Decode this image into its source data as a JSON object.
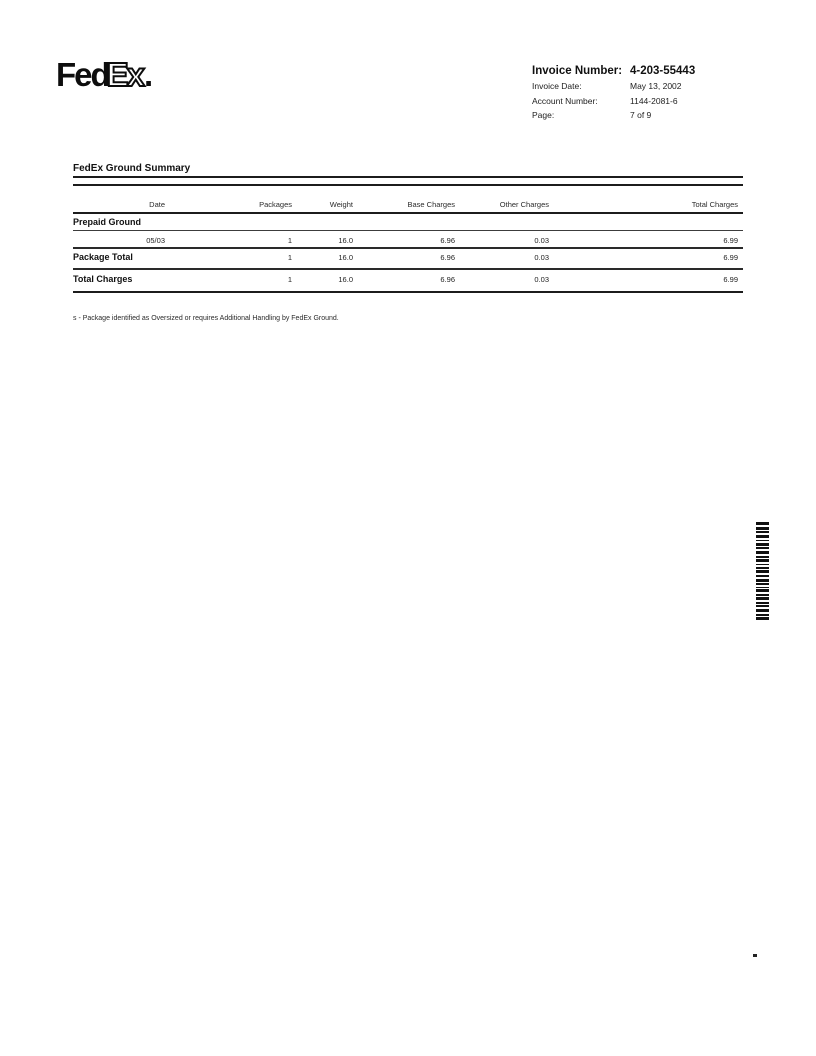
{
  "logo": {
    "fed": "Fed",
    "ex": "Ex",
    "period": "."
  },
  "invoice_meta": {
    "invoice_number_label": "Invoice Number:",
    "invoice_number": "4-203-55443",
    "invoice_date_label": "Invoice Date:",
    "invoice_date": "May 13, 2002",
    "account_number_label": "Account Number:",
    "account_number": "1144-2081-6",
    "page_label": "Page:",
    "page": "7 of 9"
  },
  "summary": {
    "title": "FedEx Ground Summary",
    "columns": [
      "Date",
      "Packages",
      "Weight",
      "Base Charges",
      "Other Charges",
      "Total Charges"
    ],
    "section_label": "Prepaid Ground",
    "rows": [
      {
        "label": "",
        "date": "05/03",
        "packages": "1",
        "weight": "16.0",
        "base": "6.96",
        "other": "0.03",
        "total": "6.99"
      },
      {
        "label": "Package Total",
        "date": "",
        "packages": "1",
        "weight": "16.0",
        "base": "6.96",
        "other": "0.03",
        "total": "6.99"
      },
      {
        "label": "Total Charges",
        "date": "",
        "packages": "1",
        "weight": "16.0",
        "base": "6.96",
        "other": "0.03",
        "total": "6.99"
      }
    ],
    "footnote": "s - Package identified as Oversized or requires Additional Handling by FedEx Ground."
  },
  "barcode": {
    "color": "#111111",
    "bars": [
      [
        3,
        2
      ],
      [
        3,
        1
      ],
      [
        2,
        2
      ],
      [
        3,
        2
      ],
      [
        1,
        2
      ],
      [
        3,
        1
      ],
      [
        2,
        2
      ],
      [
        3,
        2
      ],
      [
        2,
        1
      ],
      [
        3,
        2
      ],
      [
        1,
        2
      ],
      [
        2,
        1
      ],
      [
        3,
        2
      ],
      [
        2,
        2
      ],
      [
        3,
        1
      ],
      [
        2,
        2
      ],
      [
        1,
        1
      ],
      [
        3,
        2
      ],
      [
        2,
        1
      ],
      [
        3,
        2
      ],
      [
        2,
        1
      ],
      [
        2,
        2
      ],
      [
        3,
        2
      ],
      [
        2,
        1
      ],
      [
        3,
        0
      ]
    ]
  }
}
